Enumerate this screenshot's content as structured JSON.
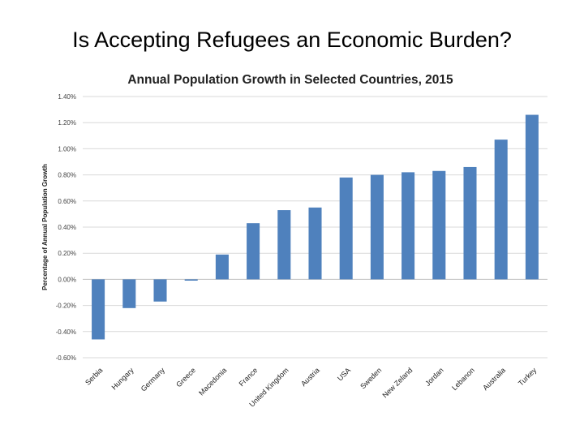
{
  "slide": {
    "title": "Is Accepting Refugees an Economic Burden?"
  },
  "colors": {
    "bar": "#4f81bd"
  },
  "chart_data": {
    "type": "bar",
    "title": "Annual Population Growth in Selected Countries, 2015",
    "xlabel": "",
    "ylabel": "Percentage of Annual Population Growth",
    "ylim": [
      -0.6,
      1.4
    ],
    "yticks": [
      1.4,
      1.2,
      1.0,
      0.8,
      0.6,
      0.4,
      0.2,
      0.0,
      -0.2,
      -0.4,
      -0.6
    ],
    "ytick_labels": [
      "1.40%",
      "1.20%",
      "1.00%",
      "0.80%",
      "0.60%",
      "0.40%",
      "0.20%",
      "0.00%",
      "-0.20%",
      "-0.40%",
      "-0.60%"
    ],
    "grid": true,
    "categories": [
      "Serbia",
      "Hungary",
      "Germany",
      "Greece",
      "Macedonia",
      "France",
      "United Kingdom",
      "Austria",
      "USA",
      "Sweden",
      "New Zeland",
      "Jordan",
      "Lebanon",
      "Australia",
      "Turkey"
    ],
    "values": [
      -0.46,
      -0.22,
      -0.17,
      -0.01,
      0.19,
      0.43,
      0.53,
      0.55,
      0.78,
      0.8,
      0.82,
      0.83,
      0.86,
      1.07,
      1.26
    ]
  }
}
